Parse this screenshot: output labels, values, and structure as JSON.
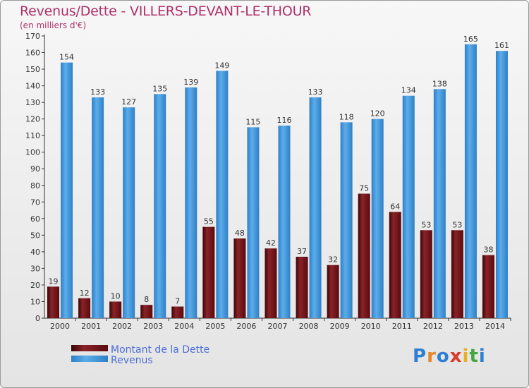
{
  "title": "Revenus/Dette - VILLERS-DEVANT-LE-THOUR",
  "subtitle": "(en milliers d'€)",
  "logo": "Proxiti",
  "colors": {
    "dette": "#7a1418",
    "revenus": "#3b93dc",
    "axis": "#333333",
    "title": "#b0306a"
  },
  "chart_data": {
    "type": "bar",
    "categories": [
      "2000",
      "2001",
      "2002",
      "2003",
      "2004",
      "2005",
      "2006",
      "2007",
      "2008",
      "2009",
      "2010",
      "2011",
      "2012",
      "2013",
      "2014"
    ],
    "series": [
      {
        "name": "Montant de la Dette",
        "values": [
          19,
          12,
          10,
          8,
          7,
          55,
          48,
          42,
          37,
          32,
          75,
          64,
          53,
          53,
          38
        ]
      },
      {
        "name": "Revenus",
        "values": [
          154,
          133,
          127,
          135,
          139,
          149,
          115,
          116,
          133,
          118,
          120,
          134,
          138,
          165,
          161
        ]
      }
    ],
    "ylim": [
      0,
      170
    ],
    "yticks": [
      0,
      10,
      20,
      30,
      40,
      50,
      60,
      70,
      80,
      90,
      100,
      110,
      120,
      130,
      140,
      150,
      160,
      170
    ],
    "grid": false,
    "legend": "bottom-left"
  }
}
